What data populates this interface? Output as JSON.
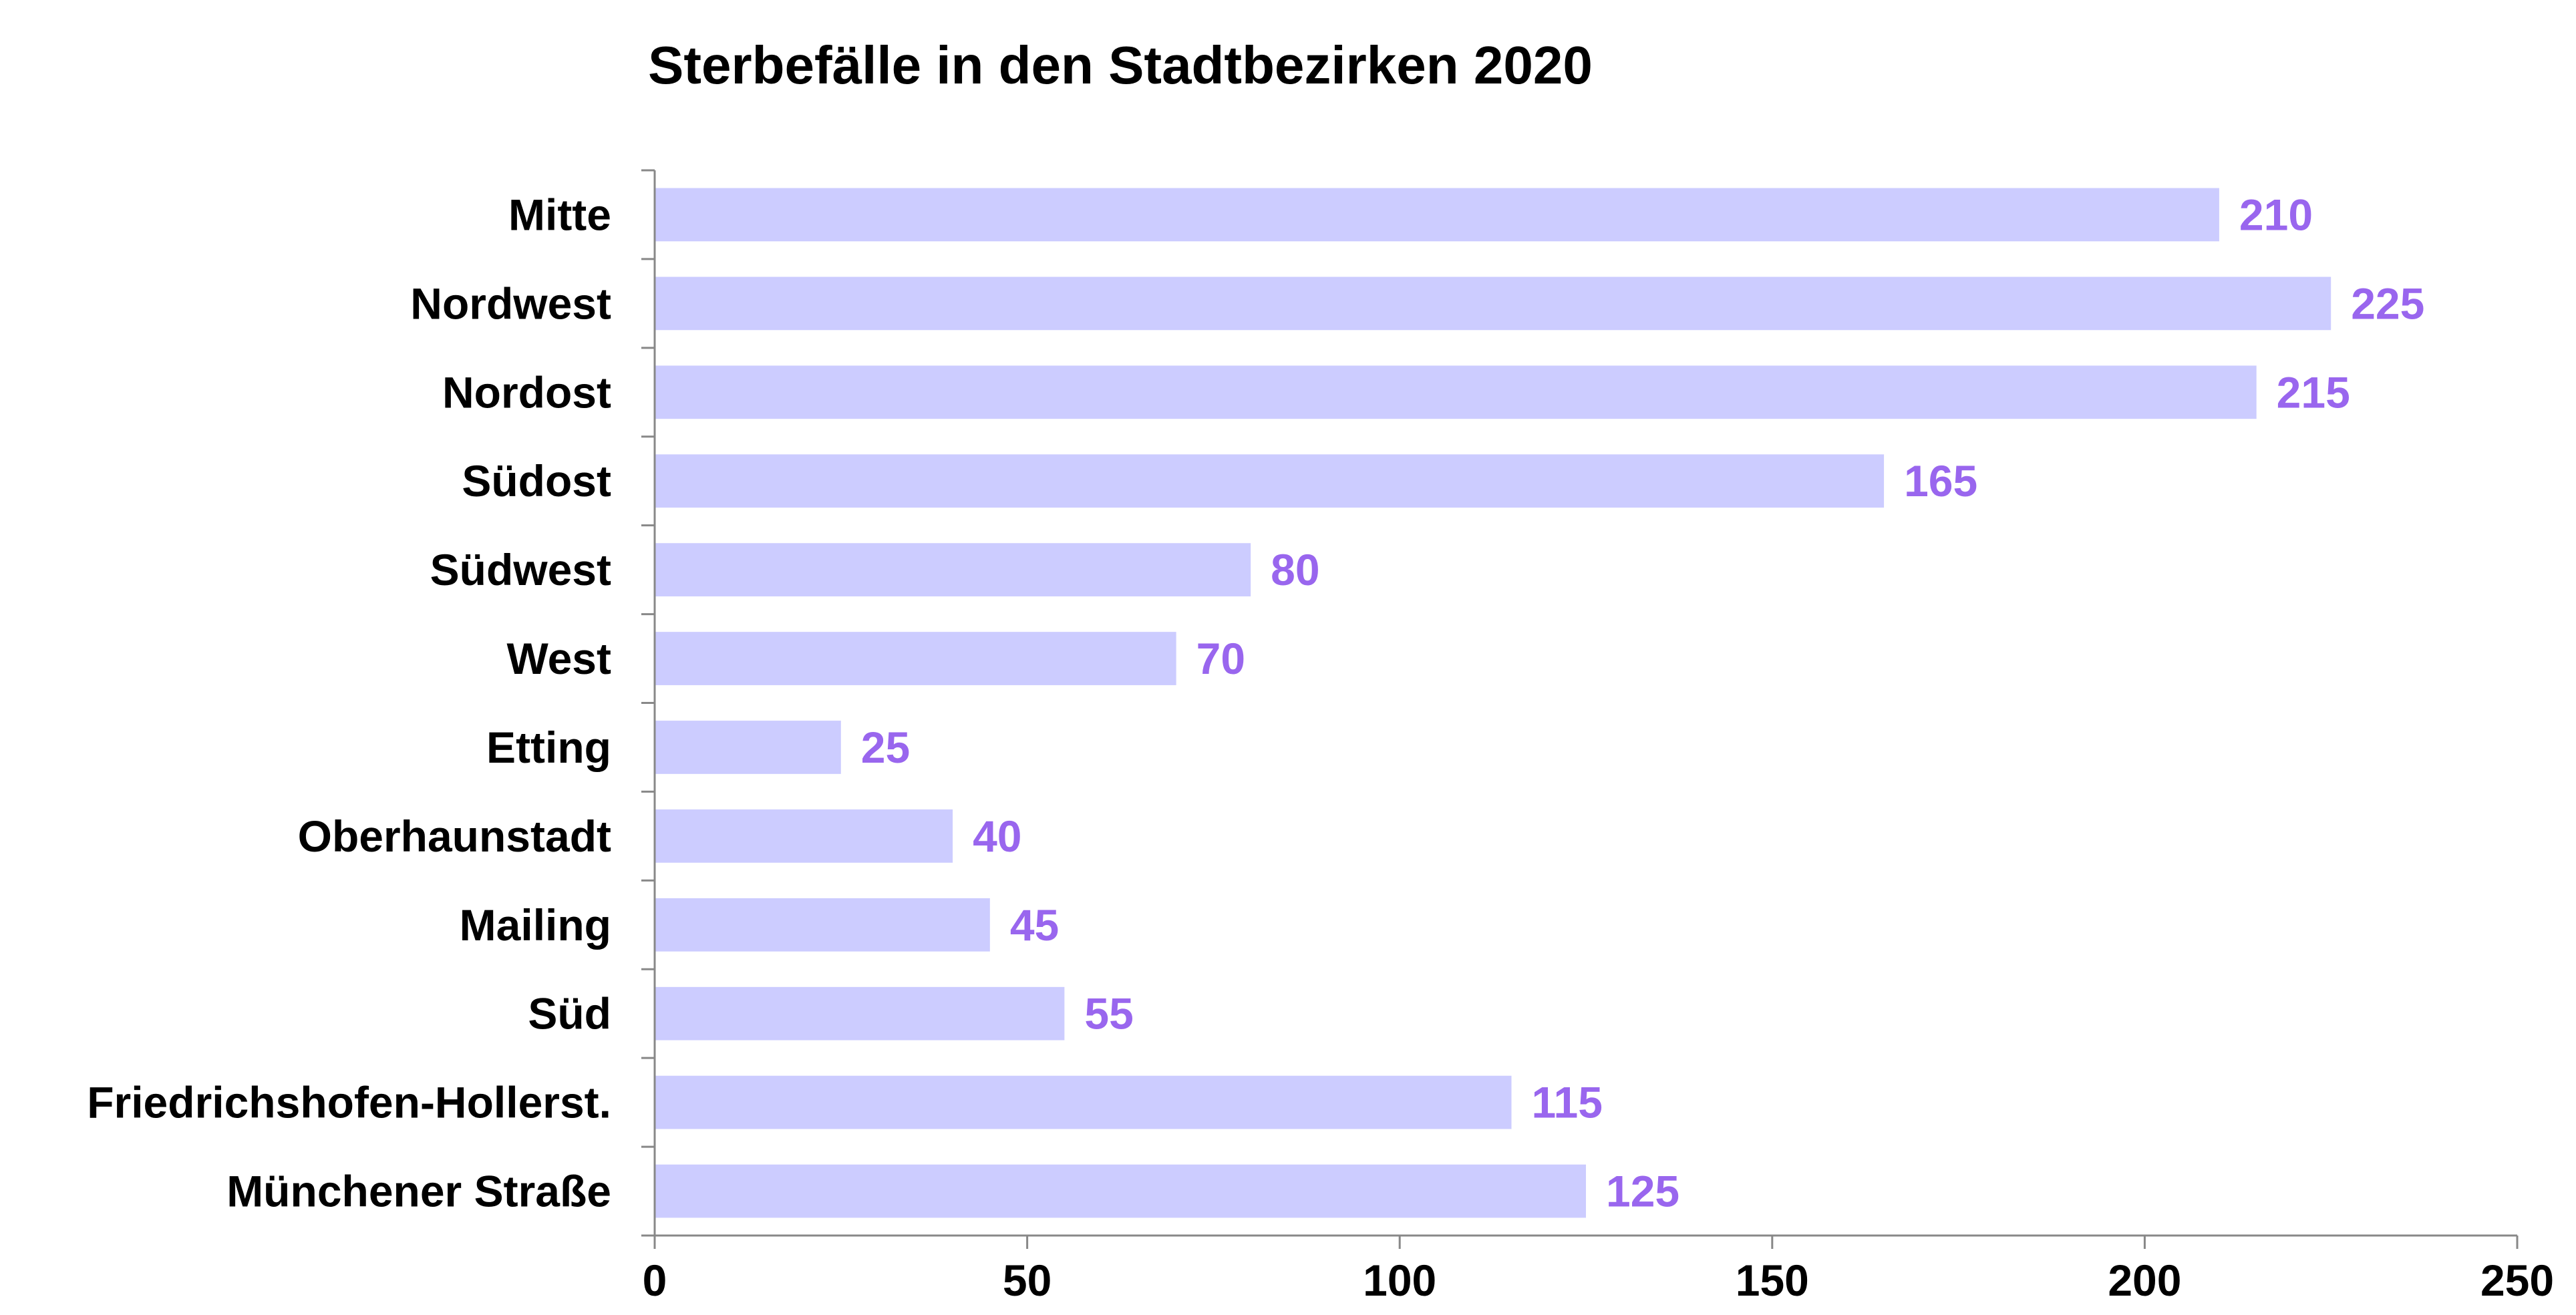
{
  "chart_data": {
    "type": "bar",
    "orientation": "horizontal",
    "title": "Sterbefälle in den Stadtbezirken 2020",
    "xlabel": "",
    "ylabel": "",
    "categories": [
      "Mitte",
      "Nordwest",
      "Nordost",
      "Südost",
      "Südwest",
      "West",
      "Etting",
      "Oberhaunstadt",
      "Mailing",
      "Süd",
      "Friedrichshofen-Hollerst.",
      "Münchener Straße"
    ],
    "values": [
      210,
      225,
      215,
      165,
      80,
      70,
      25,
      40,
      45,
      55,
      115,
      125
    ],
    "xlim": [
      0,
      250
    ],
    "xticks": [
      "0",
      "50",
      "100",
      "150",
      "200",
      "250"
    ],
    "grid": false,
    "legend": "none",
    "bar_color": "#ccccff",
    "label_color": "#9966ee"
  }
}
